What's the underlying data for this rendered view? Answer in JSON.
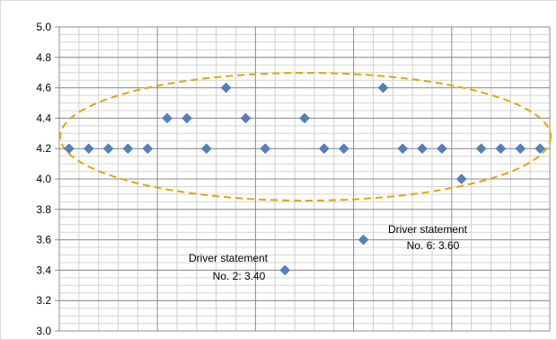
{
  "chart_data": {
    "type": "scatter",
    "title": "",
    "xlabel": "",
    "ylabel": "",
    "ylim": [
      3.0,
      5.0
    ],
    "ytick_step": 0.2,
    "grid": true,
    "legend": "none",
    "marker": "diamond",
    "marker_color": "#4f81bd",
    "highlight_ellipse_color": "#e0a800",
    "y_tick_labels": [
      "3.0",
      "3.2",
      "3.4",
      "3.6",
      "3.8",
      "4.0",
      "4.2",
      "4.4",
      "4.6",
      "4.8",
      "5.0"
    ],
    "x": [
      1,
      2,
      3,
      4,
      5,
      6,
      7,
      8,
      9,
      10,
      11,
      12,
      13,
      14,
      15,
      16,
      17,
      18,
      19,
      20,
      21,
      22,
      23,
      24,
      25
    ],
    "y": [
      4.2,
      4.2,
      4.2,
      4.2,
      4.2,
      4.4,
      4.4,
      4.2,
      4.6,
      4.4,
      4.2,
      3.4,
      4.4,
      4.2,
      4.2,
      3.6,
      4.6,
      4.2,
      4.2,
      4.2,
      4.0,
      4.2,
      4.2,
      4.2,
      4.2
    ],
    "annotations": [
      {
        "line1": "Driver  statement",
        "line2": "No. 2: 3.40",
        "x": 12,
        "y": 3.4
      },
      {
        "line1": "Driver  statement",
        "line2": "No. 6: 3.60",
        "x": 16,
        "y": 3.6
      }
    ]
  }
}
